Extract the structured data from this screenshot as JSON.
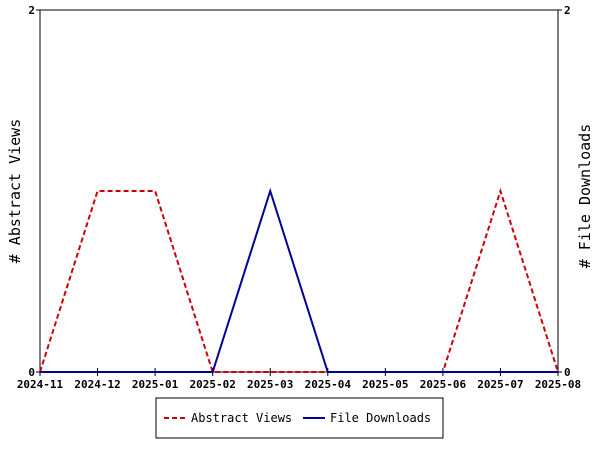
{
  "chart_data": {
    "type": "line",
    "x": [
      "2024-11",
      "2024-12",
      "2025-01",
      "2025-02",
      "2025-03",
      "2025-04",
      "2025-05",
      "2025-06",
      "2025-07",
      "2025-08"
    ],
    "series": [
      {
        "name": "Abstract Views",
        "axis": "left",
        "color": "#cc0000",
        "style": "dashed",
        "points": [
          {
            "x": "2024-11",
            "y": 0
          },
          {
            "x": "2024-12",
            "y": 1
          },
          {
            "x": "2025-01",
            "y": 1
          },
          {
            "x": "2025-02",
            "y": 0
          },
          {
            "x": "2025-06",
            "y": 0
          },
          {
            "x": "2025-07",
            "y": 1
          },
          {
            "x": "2025-08",
            "y": 0
          }
        ]
      },
      {
        "name": "File Downloads",
        "axis": "right",
        "color": "#000099",
        "style": "solid",
        "points": [
          {
            "x": "2024-11",
            "y": 0
          },
          {
            "x": "2025-02",
            "y": 0
          },
          {
            "x": "2025-03",
            "y": 1
          },
          {
            "x": "2025-04",
            "y": 0
          },
          {
            "x": "2025-08",
            "y": 0
          }
        ]
      }
    ],
    "ylabel": "# Abstract Views",
    "y2label": "# File Downloads",
    "ylim": [
      0,
      2
    ],
    "y2lim": [
      0,
      2
    ],
    "yticks": [
      "0",
      "2"
    ],
    "y2ticks": [
      "0",
      "2"
    ],
    "grid": false,
    "legend_position": "bottom-center"
  }
}
